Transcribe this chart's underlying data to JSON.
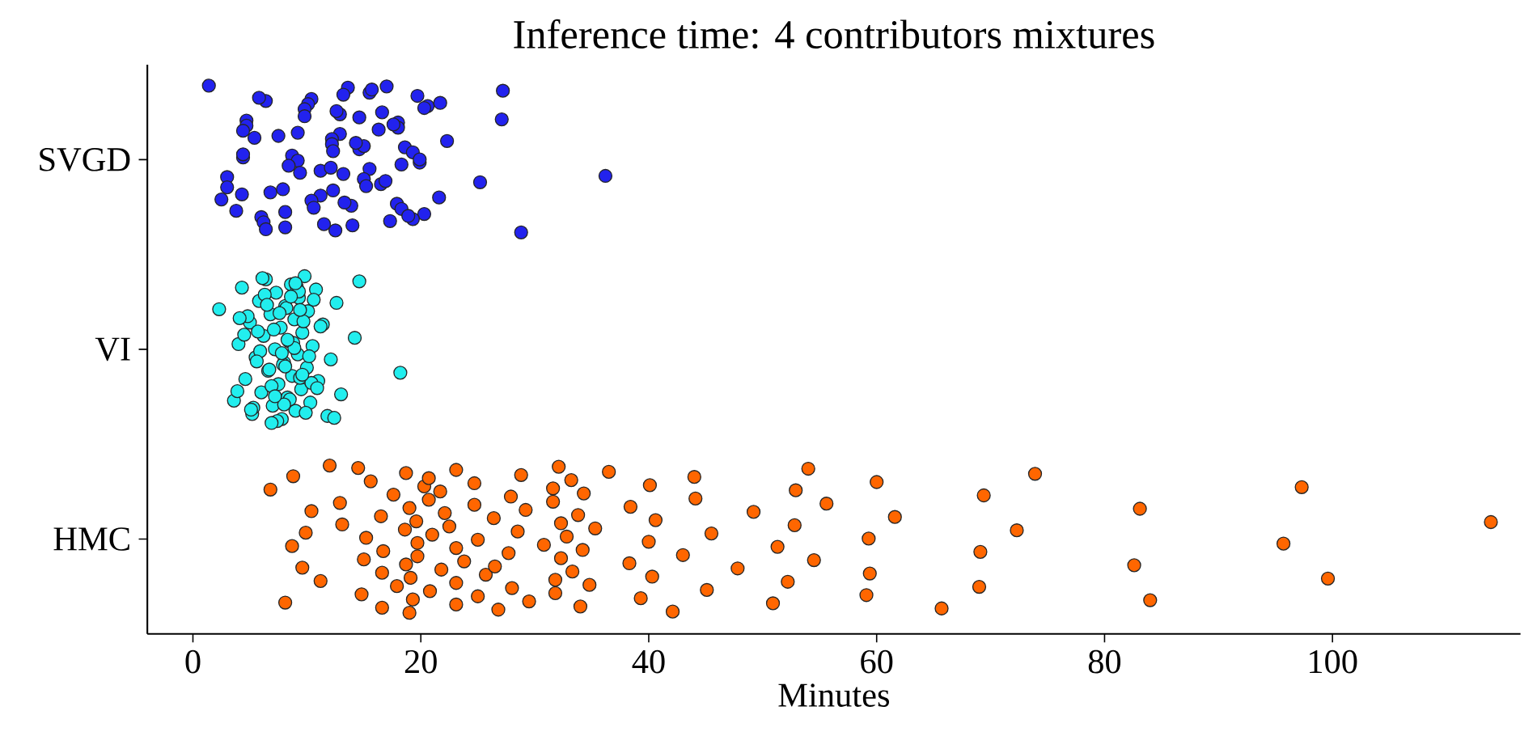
{
  "chart_data": {
    "type": "scatter",
    "orientation": "horizontal",
    "title": "Inference time: 4 contributors mixtures",
    "xlabel": "Minutes",
    "categories": [
      "SVGD",
      "VI",
      "HMC"
    ],
    "xlim": [
      -4,
      116.5
    ],
    "xticks": [
      0,
      20,
      40,
      60,
      80,
      100
    ],
    "series": [
      {
        "color": "#2222ee",
        "x": [
          "SVGD",
          "SVGD",
          "SVGD",
          "SVGD",
          "SVGD",
          "SVGD",
          "SVGD",
          "SVGD",
          "SVGD",
          "SVGD",
          "SVGD",
          "SVGD",
          "SVGD",
          "SVGD",
          "SVGD",
          "SVGD",
          "SVGD",
          "SVGD",
          "SVGD",
          "SVGD",
          "SVGD",
          "SVGD",
          "SVGD",
          "SVGD",
          "SVGD",
          "SVGD",
          "SVGD",
          "SVGD",
          "SVGD",
          "SVGD",
          "SVGD",
          "SVGD",
          "SVGD",
          "SVGD",
          "SVGD",
          "SVGD",
          "SVGD",
          "SVGD",
          "SVGD",
          "SVGD",
          "SVGD",
          "SVGD",
          "SVGD",
          "SVGD",
          "SVGD",
          "SVGD",
          "SVGD",
          "SVGD",
          "SVGD",
          "SVGD",
          "SVGD",
          "SVGD",
          "SVGD",
          "SVGD",
          "SVGD",
          "SVGD",
          "SVGD",
          "SVGD",
          "SVGD",
          "SVGD",
          "SVGD",
          "SVGD",
          "SVGD",
          "SVGD",
          "SVGD",
          "SVGD",
          "SVGD",
          "SVGD",
          "SVGD",
          "SVGD",
          "SVGD",
          "SVGD",
          "SVGD",
          "SVGD",
          "SVGD",
          "SVGD",
          "SVGD",
          "SVGD",
          "SVGD",
          "SVGD",
          "SVGD",
          "SVGD",
          "SVGD",
          "SVGD",
          "SVGD",
          "SVGD",
          "SVGD",
          "SVGD",
          "SVGD",
          "SVGD"
        ],
        "values": [
          1.4,
          3.0,
          4.7,
          8.1,
          8.7,
          10.4,
          12.3,
          12.9,
          14.0,
          15.5,
          16.6,
          17.9,
          18.6,
          27.2,
          25.2,
          4.7,
          6.0,
          9.2,
          10.1,
          11.2,
          12.2,
          12.5,
          13.2,
          14.6,
          18.3,
          19.3,
          19.7,
          3.0,
          4.4,
          6.2,
          8.4,
          9.8,
          10.4,
          12.2,
          13.6,
          15.0,
          18.0,
          20.3,
          4.4,
          6.4,
          6.8,
          7.5,
          8.1,
          11.2,
          12.9,
          13.9,
          14.6,
          15.5,
          16.5,
          18.0,
          19.3,
          19.9,
          20.6,
          21.6,
          22.3,
          28.8,
          36.2,
          27.1,
          3.8,
          4.4,
          5.8,
          7.9,
          9.2,
          11.5,
          12.1,
          12.6,
          13.3,
          15.0,
          15.7,
          16.9,
          17.6,
          18.9,
          19.9,
          21.7,
          4.3,
          5.4,
          6.4,
          9.4,
          9.8,
          10.6,
          12.3,
          13.2,
          15.2,
          16.3,
          17.3,
          18.3,
          20.3,
          2.5,
          14.3,
          17.0
        ]
      },
      {
        "color": "#22eeee",
        "x": [
          "VI",
          "VI",
          "VI",
          "VI",
          "VI",
          "VI",
          "VI",
          "VI",
          "VI",
          "VI",
          "VI",
          "VI",
          "VI",
          "VI",
          "VI",
          "VI",
          "VI",
          "VI",
          "VI",
          "VI",
          "VI",
          "VI",
          "VI",
          "VI",
          "VI",
          "VI",
          "VI",
          "VI",
          "VI",
          "VI",
          "VI",
          "VI",
          "VI",
          "VI",
          "VI",
          "VI",
          "VI",
          "VI",
          "VI",
          "VI",
          "VI",
          "VI",
          "VI",
          "VI",
          "VI",
          "VI",
          "VI",
          "VI",
          "VI",
          "VI",
          "VI",
          "VI",
          "VI",
          "VI",
          "VI",
          "VI",
          "VI",
          "VI",
          "VI",
          "VI",
          "VI",
          "VI",
          "VI",
          "VI",
          "VI",
          "VI",
          "VI",
          "VI",
          "VI",
          "VI",
          "VI",
          "VI",
          "VI",
          "VI",
          "VI",
          "VI",
          "VI",
          "VI",
          "VI",
          "VI",
          "VI",
          "VI",
          "VI",
          "VI",
          "VI",
          "VI",
          "VI",
          "VI",
          "VI",
          "VI"
        ],
        "values": [
          2.3,
          3.6,
          4.0,
          4.3,
          4.6,
          5.0,
          5.2,
          5.5,
          5.8,
          6.0,
          6.2,
          6.4,
          6.6,
          6.8,
          7.0,
          7.2,
          7.3,
          7.5,
          7.7,
          7.8,
          8.0,
          8.1,
          8.3,
          8.4,
          8.6,
          8.7,
          8.9,
          9.0,
          9.2,
          9.3,
          9.5,
          9.6,
          9.8,
          10.0,
          10.1,
          10.3,
          10.5,
          10.8,
          11.0,
          11.4,
          11.8,
          12.1,
          12.6,
          13.0,
          14.2,
          14.6,
          18.2,
          4.8,
          5.3,
          5.9,
          6.3,
          6.9,
          7.1,
          7.4,
          7.9,
          8.2,
          8.5,
          8.8,
          9.1,
          9.4,
          9.7,
          9.9,
          10.2,
          10.6,
          3.9,
          4.5,
          6.1,
          6.7,
          7.6,
          8.0,
          8.9,
          9.3,
          10.4,
          11.2,
          12.4,
          5.6,
          6.5,
          7.2,
          8.3,
          9.0,
          9.6,
          4.1,
          5.1,
          7.8,
          8.6,
          10.9,
          5.7,
          6.9,
          8.1,
          9.4
        ]
      },
      {
        "color": "#ff6600",
        "x": [
          "HMC",
          "HMC",
          "HMC",
          "HMC",
          "HMC",
          "HMC",
          "HMC",
          "HMC",
          "HMC",
          "HMC",
          "HMC",
          "HMC",
          "HMC",
          "HMC",
          "HMC",
          "HMC",
          "HMC",
          "HMC",
          "HMC",
          "HMC",
          "HMC",
          "HMC",
          "HMC",
          "HMC",
          "HMC",
          "HMC",
          "HMC",
          "HMC",
          "HMC",
          "HMC",
          "HMC",
          "HMC",
          "HMC",
          "HMC",
          "HMC",
          "HMC",
          "HMC",
          "HMC",
          "HMC",
          "HMC",
          "HMC",
          "HMC",
          "HMC",
          "HMC",
          "HMC",
          "HMC",
          "HMC",
          "HMC",
          "HMC",
          "HMC",
          "HMC",
          "HMC",
          "HMC",
          "HMC",
          "HMC",
          "HMC",
          "HMC",
          "HMC",
          "HMC",
          "HMC",
          "HMC",
          "HMC",
          "HMC",
          "HMC",
          "HMC",
          "HMC",
          "HMC",
          "HMC",
          "HMC",
          "HMC",
          "HMC",
          "HMC",
          "HMC",
          "HMC",
          "HMC",
          "HMC",
          "HMC",
          "HMC",
          "HMC",
          "HMC",
          "HMC",
          "HMC",
          "HMC",
          "HMC",
          "HMC",
          "HMC",
          "HMC",
          "HMC",
          "HMC",
          "HMC",
          "HMC",
          "HMC",
          "HMC",
          "HMC",
          "HMC",
          "HMC",
          "HMC",
          "HMC",
          "HMC",
          "HMC",
          "HMC",
          "HMC",
          "HMC",
          "HMC",
          "HMC",
          "HMC",
          "HMC",
          "HMC",
          "HMC",
          "HMC",
          "HMC",
          "HMC",
          "HMC",
          "HMC",
          "HMC",
          "HMC",
          "HMC",
          "HMC",
          "HMC",
          "HMC"
        ],
        "values": [
          9.9,
          8.8,
          9.6,
          10.4,
          8.1,
          8.7,
          6.8,
          11.2,
          13.1,
          14.5,
          15.0,
          12.9,
          14.8,
          15.2,
          15.6,
          16.6,
          16.5,
          16.6,
          16.7,
          17.6,
          17.9,
          18.6,
          18.7,
          18.7,
          19.0,
          19.3,
          19.7,
          20.3,
          19.1,
          19.6,
          19.0,
          19.7,
          20.7,
          20.8,
          21.0,
          20.7,
          21.8,
          22.1,
          23.1,
          23.1,
          21.7,
          23.1,
          22.5,
          23.1,
          23.8,
          24.7,
          25.0,
          25.0,
          24.7,
          25.7,
          26.4,
          26.8,
          27.7,
          27.9,
          28.0,
          28.5,
          28.8,
          26.5,
          29.2,
          29.5,
          30.8,
          31.6,
          31.8,
          32.3,
          32.1,
          32.3,
          31.6,
          31.8,
          32.8,
          33.2,
          33.3,
          33.8,
          34.0,
          34.2,
          34.3,
          34.8,
          35.3,
          36.5,
          38.3,
          38.4,
          39.3,
          40.0,
          40.1,
          40.3,
          40.6,
          42.1,
          43.0,
          44.1,
          45.1,
          45.5,
          44.0,
          47.8,
          49.2,
          50.9,
          51.3,
          52.9,
          52.2,
          52.8,
          54.0,
          54.5,
          55.6,
          59.1,
          59.3,
          60.0,
          59.4,
          61.6,
          65.7,
          69.1,
          69.4,
          69.0,
          72.3,
          73.9,
          82.6,
          83.1,
          84.0,
          95.7,
          97.3,
          99.6,
          113.9,
          12.0
        ]
      }
    ]
  }
}
